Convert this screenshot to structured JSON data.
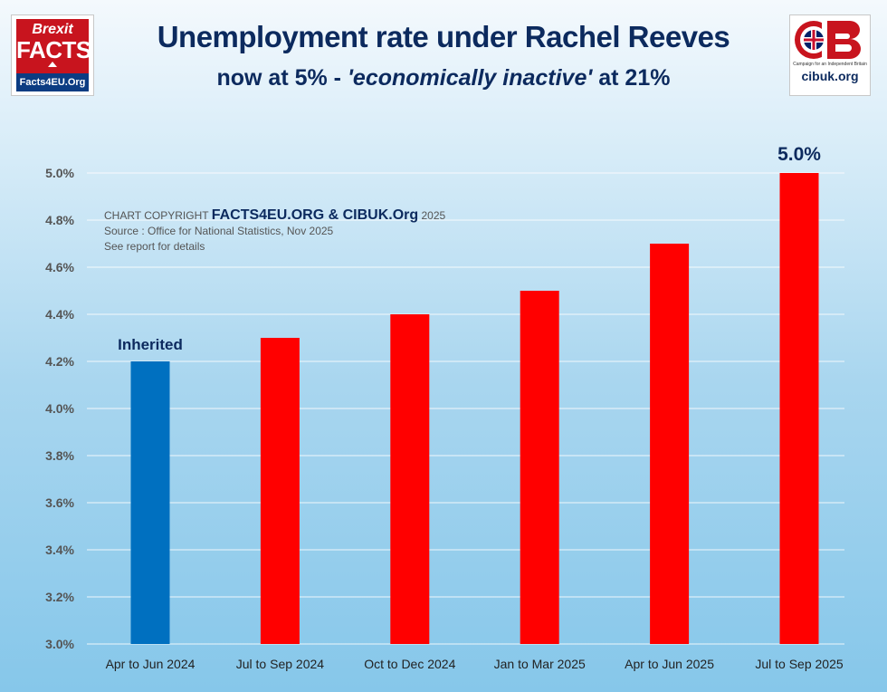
{
  "header": {
    "title": "Unemployment rate under Rachel Reeves",
    "subtitle_prefix": "now at 5% - ",
    "subtitle_italic": "'economically inactive'",
    "subtitle_suffix": " at 21%"
  },
  "logos": {
    "left_brexit": "Brexit",
    "left_facts": "FACTS",
    "left_site": "Facts4EU.Org",
    "right_mark": "CIB",
    "right_tagline": "Campaign for an Independent Britain",
    "right_site": "cibuk.org"
  },
  "credit": {
    "prefix": "CHART COPYRIGHT ",
    "owner": "FACTS4EU.ORG & CIBUK.Org",
    "year": " 2025",
    "source": "Source : Office for National Statistics, Nov 2025",
    "note": "See report for details"
  },
  "colors": {
    "inherited_bar": "#0070c0",
    "reeves_bar": "#ff0000",
    "title": "#0c2a5e",
    "gridline": "#ffffff"
  },
  "chart_data": {
    "type": "bar",
    "categories": [
      "Apr to Jun 2024",
      "Jul to Sep 2024",
      "Oct to Dec 2024",
      "Jan to Mar 2025",
      "Apr to Jun 2025",
      "Jul to Sep 2025"
    ],
    "values": [
      4.2,
      4.3,
      4.4,
      4.5,
      4.7,
      5.0
    ],
    "bar_colors": [
      "#0070c0",
      "#ff0000",
      "#ff0000",
      "#ff0000",
      "#ff0000",
      "#ff0000"
    ],
    "ylim": [
      3.0,
      5.0
    ],
    "yticks": [
      3.0,
      3.2,
      3.4,
      3.6,
      3.8,
      4.0,
      4.2,
      4.4,
      4.6,
      4.8,
      5.0
    ],
    "ytick_labels": [
      "3.0%",
      "3.2%",
      "3.4%",
      "3.6%",
      "3.8%",
      "4.0%",
      "4.2%",
      "4.4%",
      "4.6%",
      "4.8%",
      "5.0%"
    ],
    "grid": true,
    "annotations": [
      {
        "category": "Apr to Jun 2024",
        "text": "Inherited"
      },
      {
        "category": "Jul to Sep 2025",
        "text": "5.0%"
      }
    ]
  }
}
